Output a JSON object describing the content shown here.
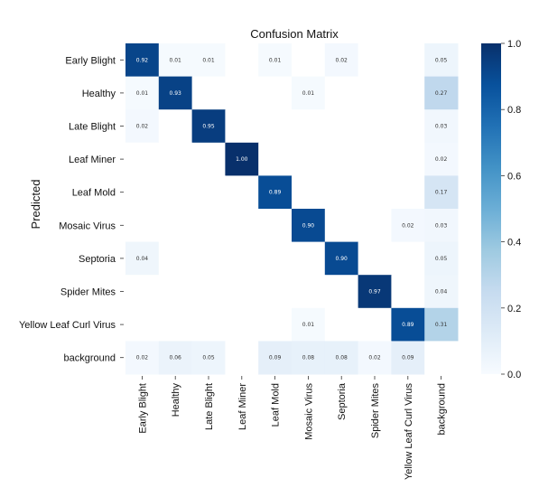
{
  "chart_data": {
    "type": "heatmap",
    "title": "Confusion Matrix",
    "ylabel": "Predicted",
    "xlabel": "",
    "rows": [
      "Early Blight",
      "Healthy",
      "Late Blight",
      "Leaf Miner",
      "Leaf Mold",
      "Mosaic Virus",
      "Septoria",
      "Spider Mites",
      "Yellow Leaf Curl Virus",
      "background"
    ],
    "columns": [
      "Early Blight",
      "Healthy",
      "Late Blight",
      "Leaf Miner",
      "Leaf Mold",
      "Mosaic Virus",
      "Septoria",
      "Spider Mites",
      "Yellow Leaf Curl Virus",
      "background"
    ],
    "values": [
      [
        0.92,
        0.01,
        0.01,
        null,
        0.01,
        null,
        0.02,
        null,
        null,
        0.05
      ],
      [
        0.01,
        0.93,
        null,
        null,
        null,
        0.01,
        null,
        null,
        null,
        0.27
      ],
      [
        0.02,
        null,
        0.95,
        null,
        null,
        null,
        null,
        null,
        null,
        0.03
      ],
      [
        null,
        null,
        null,
        1.0,
        null,
        null,
        null,
        null,
        null,
        0.02
      ],
      [
        null,
        null,
        null,
        null,
        0.89,
        null,
        null,
        null,
        null,
        0.17
      ],
      [
        null,
        null,
        null,
        null,
        null,
        0.9,
        null,
        null,
        0.02,
        0.03
      ],
      [
        0.04,
        null,
        null,
        null,
        null,
        null,
        0.9,
        null,
        null,
        0.05
      ],
      [
        null,
        null,
        null,
        null,
        null,
        null,
        null,
        0.97,
        null,
        0.04
      ],
      [
        null,
        null,
        null,
        null,
        null,
        0.01,
        null,
        null,
        0.89,
        0.31
      ],
      [
        0.02,
        0.06,
        0.05,
        null,
        0.09,
        0.08,
        0.08,
        0.02,
        0.09,
        null
      ]
    ],
    "colorbar": {
      "range": [
        0.0,
        1.0
      ],
      "ticks": [
        "0.0",
        "0.2",
        "0.4",
        "0.6",
        "0.8",
        "1.0"
      ],
      "colormap": "Blues",
      "low_color": "#f7fbff",
      "high_color": "#08306b"
    },
    "grid": false
  }
}
